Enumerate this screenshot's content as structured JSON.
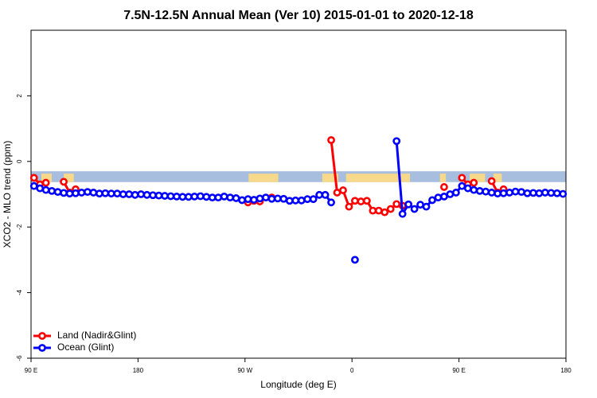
{
  "chart_data": {
    "type": "line",
    "title": "7.5N-12.5N Annual Mean (Ver 10)   2015-01-01 to 2020-12-18",
    "x_label": "Longitude (deg E)",
    "y_label": "XCO2 - MLO trend (ppm)",
    "xlim": [
      90,
      540
    ],
    "ylim": [
      -6,
      4
    ],
    "xticks": [
      {
        "value": 90,
        "label": "90 E"
      },
      180,
      {
        "value": 270,
        "label": "90 W"
      },
      {
        "value": 360,
        "label": "0"
      },
      {
        "value": 450,
        "label": "90 E"
      },
      {
        "value": 540,
        "label": "180"
      }
    ],
    "yticks": [
      -6,
      -4,
      -2,
      0,
      2
    ],
    "legend": "bottom-left",
    "band": {
      "range": [
        -0.63,
        -0.3
      ],
      "color": "#a7bede"
    },
    "land_mask": {
      "color": "#f6d98a",
      "ranges": [
        [
          98.7,
          107.4
        ],
        [
          117.5,
          126
        ],
        [
          273,
          298
        ],
        [
          335,
          348.5
        ],
        [
          355,
          408.8
        ],
        [
          434,
          439
        ],
        [
          459,
          472
        ],
        [
          479,
          486
        ]
      ]
    },
    "series": [
      {
        "name": "Land (Nadir&Glint)",
        "color": "#ff0000",
        "x": [
          92.5,
          97.5,
          102.5,
          110,
          117.5,
          122.5,
          127.5,
          200,
          272.5,
          277.5,
          282.5,
          287.5,
          292.5,
          320,
          342.5,
          347.5,
          352.5,
          357.5,
          362.5,
          367.5,
          372.5,
          377.5,
          382.5,
          387.5,
          392.5,
          397.5,
          402.5,
          420,
          437.5,
          445,
          452.5,
          457.5,
          462.5,
          470,
          477.5,
          482.5,
          487.5
        ],
        "values": [
          -0.5,
          -0.7,
          -0.65,
          null,
          -0.62,
          -0.95,
          -0.85,
          null,
          -1.25,
          -1.2,
          -1.22,
          null,
          -1.1,
          null,
          0.65,
          -0.95,
          -0.88,
          -1.38,
          -1.2,
          -1.22,
          -1.2,
          -1.5,
          -1.5,
          -1.55,
          -1.45,
          -1.3,
          -1.35,
          null,
          -0.78,
          null,
          -0.5,
          -0.7,
          -0.65,
          null,
          -0.6,
          -0.95,
          -0.85
        ]
      },
      {
        "name": "Ocean (Glint)",
        "color": "#0000ff",
        "x": [
          92.5,
          97.5,
          102.5,
          107.5,
          112.5,
          117.5,
          122.5,
          127.5,
          132.5,
          137.5,
          142.5,
          147.5,
          152.5,
          157.5,
          162.5,
          167.5,
          172.5,
          177.5,
          182.5,
          187.5,
          192.5,
          197.5,
          202.5,
          207.5,
          212.5,
          217.5,
          222.5,
          227.5,
          232.5,
          237.5,
          242.5,
          247.5,
          252.5,
          257.5,
          262.5,
          267.5,
          272.5,
          277.5,
          282.5,
          287.5,
          292.5,
          297.5,
          302.5,
          307.5,
          312.5,
          317.5,
          322.5,
          327.5,
          332.5,
          337.5,
          342.5,
          347.5,
          352.5,
          357.5,
          362.5,
          367.5,
          372.5,
          377.5,
          382.5,
          387.5,
          392.5,
          397.5,
          402.5,
          407.5,
          412.5,
          417.5,
          422.5,
          427.5,
          432.5,
          437.5,
          442.5,
          447.5,
          452.5,
          457.5,
          462.5,
          467.5,
          472.5,
          477.5,
          482.5,
          487.5,
          492.5,
          497.5,
          502.5,
          507.5,
          512.5,
          517.5,
          522.5,
          527.5,
          532.5,
          537.5
        ],
        "values": [
          -0.75,
          -0.82,
          -0.87,
          -0.9,
          -0.93,
          -0.96,
          -0.98,
          -0.97,
          -0.95,
          -0.93,
          -0.95,
          -0.98,
          -0.97,
          -0.98,
          -0.98,
          -1.0,
          -1.0,
          -1.02,
          -1.0,
          -1.02,
          -1.03,
          -1.04,
          -1.05,
          -1.06,
          -1.07,
          -1.08,
          -1.08,
          -1.07,
          -1.06,
          -1.08,
          -1.1,
          -1.1,
          -1.07,
          -1.1,
          -1.12,
          -1.18,
          -1.15,
          -1.17,
          -1.13,
          -1.1,
          -1.14,
          -1.13,
          -1.14,
          -1.2,
          -1.19,
          -1.19,
          -1.15,
          -1.15,
          -1.02,
          -1.02,
          -1.25,
          null,
          null,
          null,
          -3.0,
          null,
          null,
          null,
          null,
          null,
          null,
          0.62,
          -1.6,
          -1.31,
          -1.45,
          -1.32,
          -1.38,
          -1.18,
          -1.1,
          -1.07,
          -1.0,
          -0.95,
          -0.75,
          -0.82,
          -0.87,
          -0.9,
          -0.92,
          -0.95,
          -0.98,
          -0.97,
          -0.95,
          -0.92,
          -0.93,
          -0.97,
          -0.96,
          -0.97,
          -0.95,
          -0.96,
          -0.97,
          -0.99
        ]
      }
    ]
  }
}
